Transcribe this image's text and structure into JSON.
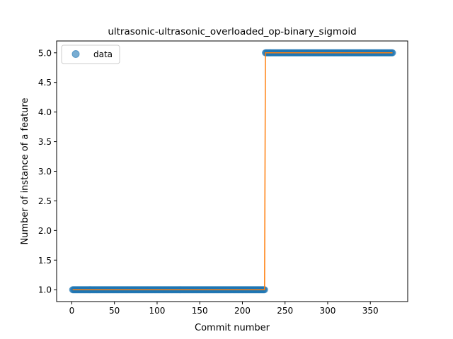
{
  "chart_data": {
    "type": "scatter",
    "title": "ultrasonic-ultrasonic_overloaded_op-binary_sigmoid",
    "xlabel": "Commit number",
    "ylabel": "Number of instance of a feature",
    "xlim": [
      -17.8,
      393.8
    ],
    "ylim": [
      0.8,
      5.2
    ],
    "xticks": [
      0,
      50,
      100,
      150,
      200,
      250,
      300,
      350
    ],
    "yticks": [
      1.0,
      1.5,
      2.0,
      2.5,
      3.0,
      3.5,
      4.0,
      4.5,
      5.0
    ],
    "xtick_labels": [
      "0",
      "50",
      "100",
      "150",
      "200",
      "250",
      "300",
      "350"
    ],
    "ytick_labels": [
      "1.0",
      "1.5",
      "2.0",
      "2.5",
      "3.0",
      "3.5",
      "4.0",
      "4.5",
      "5.0"
    ],
    "grid": false,
    "legend": {
      "placement": "top-left",
      "entries": [
        "data"
      ]
    },
    "series": [
      {
        "name": "data",
        "kind": "points",
        "color": "#1f77b4",
        "segments": [
          {
            "x_start": 1,
            "x_end": 226,
            "y": 1.0
          },
          {
            "x_start": 227,
            "x_end": 376,
            "y": 5.0
          }
        ]
      },
      {
        "kind": "line",
        "color": "#ff7f0e",
        "x": [
          1,
          226,
          227,
          376
        ],
        "y": [
          1.0,
          1.0,
          5.0,
          5.0
        ]
      }
    ]
  }
}
